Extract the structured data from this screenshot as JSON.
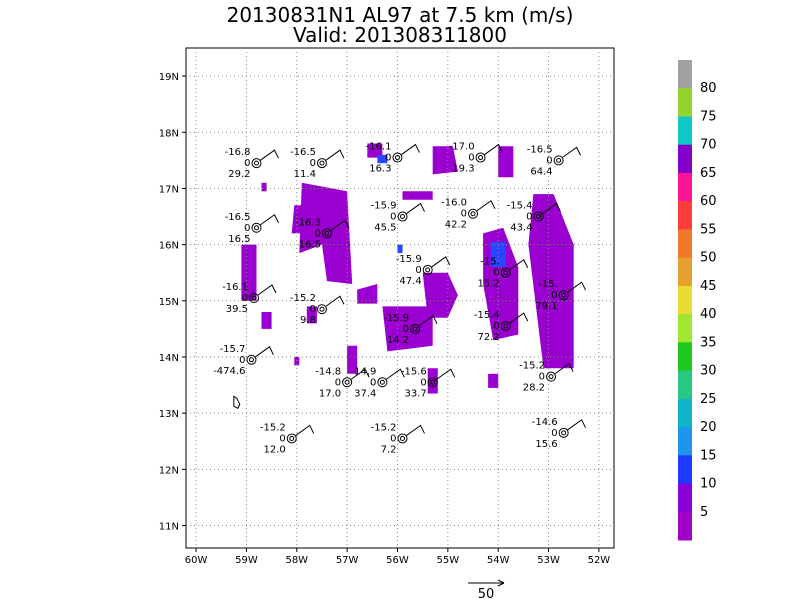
{
  "title": "20130831N1 AL97 at 7.5 km (m/s)",
  "subtitle": "Valid: 201308311800",
  "map": {
    "lat_labels": [
      "19N",
      "18N",
      "17N",
      "16N",
      "15N",
      "14N",
      "13N",
      "12N",
      "11N"
    ],
    "lon_labels": [
      "60W",
      "59W",
      "58W",
      "57W",
      "56W",
      "55W",
      "54W",
      "53W",
      "52W"
    ],
    "grid": "dotted",
    "extent": {
      "lon": [
        -60.2,
        -51.7
      ],
      "lat": [
        10.6,
        19.5
      ]
    }
  },
  "colorbar": {
    "levels": [
      "80",
      "75",
      "70",
      "65",
      "60",
      "55",
      "50",
      "45",
      "40",
      "35",
      "30",
      "25",
      "20",
      "15",
      "10",
      "5"
    ],
    "colors": [
      "#a0a0a0",
      "#96d42d",
      "#10c8c8",
      "#8200c8",
      "#ff1496",
      "#ff3c3c",
      "#f07828",
      "#e6a02d",
      "#e6dc32",
      "#a0e632",
      "#1ec81e",
      "#28c882",
      "#10b4c8",
      "#1e96f0",
      "#1e3cff",
      "#8c00dc",
      "#a000c8"
    ]
  },
  "dropsondes": [
    {
      "temp": "-16.8",
      "zero": "0",
      "value": "29.2",
      "lon": -58.8,
      "lat": 17.45
    },
    {
      "temp": "-16.5",
      "zero": "0",
      "value": "11.4",
      "lon": -57.5,
      "lat": 17.45
    },
    {
      "temp": "-16.1",
      "zero": "0",
      "value": "16.3",
      "lon": -56.0,
      "lat": 17.55
    },
    {
      "temp": "-17.0",
      "zero": "0",
      "value": "19.3",
      "lon": -54.35,
      "lat": 17.55
    },
    {
      "temp": "-16.5",
      "zero": "0",
      "value": "64.4",
      "lon": -52.8,
      "lat": 17.5
    },
    {
      "temp": "-16.5",
      "zero": "0",
      "value": "16.5",
      "lon": -58.8,
      "lat": 16.3
    },
    {
      "temp": "-16.3",
      "zero": "0",
      "value": "16.5",
      "lon": -57.4,
      "lat": 16.2
    },
    {
      "temp": "-15.9",
      "zero": "0",
      "value": "45.5",
      "lon": -55.9,
      "lat": 16.5
    },
    {
      "temp": "-16.0",
      "zero": "0",
      "value": "42.2",
      "lon": -54.5,
      "lat": 16.55
    },
    {
      "temp": "-15.4",
      "zero": "0",
      "value": "43.4",
      "lon": -53.2,
      "lat": 16.5
    },
    {
      "temp": "-15.9",
      "zero": "0",
      "value": "47.4",
      "lon": -55.4,
      "lat": 15.55
    },
    {
      "temp": "-15.",
      "zero": "0",
      "value": "15.2",
      "lon": -53.85,
      "lat": 15.5
    },
    {
      "temp": "-16.1",
      "zero": "0",
      "value": "39.5",
      "lon": -58.85,
      "lat": 15.05
    },
    {
      "temp": "-15.2",
      "zero": "0",
      "value": "9.8",
      "lon": -57.5,
      "lat": 14.85
    },
    {
      "temp": "-15.",
      "zero": "0",
      "value": "79.1",
      "lon": -52.7,
      "lat": 15.1
    },
    {
      "temp": "-15.4",
      "zero": "0",
      "value": "72.2",
      "lon": -53.85,
      "lat": 14.55
    },
    {
      "temp": "-15.9",
      "zero": "0",
      "value": "14.2",
      "lon": -55.65,
      "lat": 14.5
    },
    {
      "temp": "-15.7",
      "zero": "0",
      "value": "-474.6",
      "lon": -58.9,
      "lat": 13.95
    },
    {
      "temp": "-14.8",
      "zero": "0",
      "value": "17.0",
      "lon": -57.0,
      "lat": 13.55
    },
    {
      "temp": "-14.9",
      "zero": "0",
      "value": "37.4",
      "lon": -56.3,
      "lat": 13.55
    },
    {
      "temp": "-15.6",
      "zero": "0",
      "value": "33.7",
      "lon": -55.3,
      "lat": 13.55
    },
    {
      "temp": "-15.2",
      "zero": "0",
      "value": "28.2",
      "lon": -52.95,
      "lat": 13.65
    },
    {
      "temp": "-15.2",
      "zero": "0",
      "value": "12.0",
      "lon": -58.1,
      "lat": 12.55
    },
    {
      "temp": "-15.2",
      "zero": "0",
      "value": "7.2",
      "lon": -55.9,
      "lat": 12.55
    },
    {
      "temp": "-14.6",
      "zero": "0",
      "value": "15.6",
      "lon": -52.7,
      "lat": 12.65
    }
  ],
  "reference_vector": {
    "label": "50"
  }
}
